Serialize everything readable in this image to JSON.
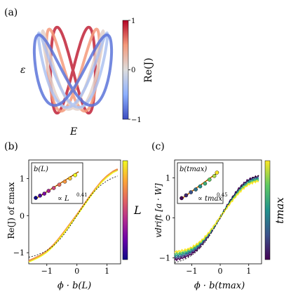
{
  "colors": {
    "coolwarm": [
      "#3b4cc0",
      "#8db0fe",
      "#dddddd",
      "#f49a7b",
      "#b40426"
    ],
    "plasma": [
      "#0d0887",
      "#6a00a8",
      "#b12a90",
      "#e16462",
      "#fca636",
      "#f0f921"
    ],
    "viridis": [
      "#440154",
      "#3b528b",
      "#21918c",
      "#5ec962",
      "#fde725"
    ],
    "fit_line": "#ff8c00"
  },
  "panels": {
    "a": {
      "label": "(a)",
      "xlabel": "E",
      "ylabel": "ε",
      "colorbar": {
        "label": "Re(J)",
        "ticks": [
          "1",
          "0",
          "−1"
        ]
      }
    },
    "b": {
      "label": "(b)",
      "xlabel": "ϕ · b(L)",
      "ylabel": "Re(J) of εmax",
      "colorbar_label": "L",
      "inset": {
        "title": "b(L)",
        "fit_text": "∝ L",
        "fit_exp": "0.41"
      }
    },
    "c": {
      "label": "(c)",
      "xlabel": "ϕ · b(tmax)",
      "ylabel": "vdrift [a · W]",
      "colorbar_label": "tmax",
      "inset": {
        "title": "b(tmax)",
        "fit_text": "∝ tmax",
        "fit_exp": "0.45"
      }
    }
  },
  "chart_data": [
    {
      "type": "line",
      "panel": "a",
      "description_of_series": "closed Lissajous-like loops in the E-epsilon plane colored by Re(J)",
      "loops": [
        {
          "name": "loop-1",
          "color_value": 0.9
        },
        {
          "name": "loop-2",
          "color_value": 0.5
        },
        {
          "name": "loop-3",
          "color_value": 0.1
        },
        {
          "name": "loop-4",
          "color_value": -0.3
        },
        {
          "name": "loop-5",
          "color_value": -0.8
        }
      ],
      "colorbar_range": [
        -1,
        1
      ]
    },
    {
      "type": "line",
      "panel": "b",
      "xlim": [
        -1.6,
        1.45
      ],
      "ylim": [
        -1.3,
        1.5
      ],
      "xticks": [
        "−1",
        "0",
        "1"
      ],
      "yticks": [
        "−1",
        "0",
        "1"
      ],
      "x": [
        -1.6,
        -1.4,
        -1.2,
        -1.0,
        -0.8,
        -0.6,
        -0.4,
        -0.2,
        0.0,
        0.2,
        0.4,
        0.6,
        0.8,
        1.0,
        1.2,
        1.35
      ],
      "series": [
        {
          "values": [
            -1.23,
            -1.16,
            -1.08,
            -0.97,
            -0.82,
            -0.63,
            -0.42,
            -0.2,
            0.02,
            0.25,
            0.48,
            0.7,
            0.9,
            1.06,
            1.18,
            1.24
          ]
        },
        {
          "values": [
            -1.22,
            -1.15,
            -1.07,
            -0.96,
            -0.81,
            -0.62,
            -0.41,
            -0.19,
            0.03,
            0.26,
            0.49,
            0.71,
            0.91,
            1.07,
            1.19,
            1.25
          ]
        },
        {
          "values": [
            -1.24,
            -1.17,
            -1.09,
            -0.98,
            -0.83,
            -0.64,
            -0.43,
            -0.21,
            0.01,
            0.24,
            0.47,
            0.69,
            0.89,
            1.05,
            1.17,
            1.23
          ]
        },
        {
          "values": [
            -1.21,
            -1.14,
            -1.06,
            -0.95,
            -0.8,
            -0.61,
            -0.4,
            -0.18,
            0.04,
            0.27,
            0.5,
            0.72,
            0.92,
            1.08,
            1.2,
            1.26
          ]
        },
        {
          "values": [
            -1.25,
            -1.18,
            -1.1,
            -0.99,
            -0.84,
            -0.65,
            -0.44,
            -0.22,
            0.0,
            0.23,
            0.46,
            0.68,
            0.88,
            1.04,
            1.16,
            1.22
          ]
        }
      ],
      "inset": {
        "points": [
          [
            0.0,
            0.05
          ],
          [
            0.1,
            0.13
          ],
          [
            0.2,
            0.2
          ],
          [
            0.3,
            0.3
          ],
          [
            0.42,
            0.4
          ],
          [
            0.55,
            0.52
          ],
          [
            0.68,
            0.63
          ],
          [
            0.8,
            0.74
          ],
          [
            0.92,
            0.86
          ]
        ],
        "fit_exponent": 0.41
      }
    },
    {
      "type": "line",
      "panel": "c",
      "xlim": [
        -1.6,
        1.45
      ],
      "ylim": [
        -1.15,
        1.45
      ],
      "xticks": [
        "−1",
        "0",
        "1"
      ],
      "yticks": [
        "−1",
        "0",
        "1"
      ],
      "x": [
        -1.6,
        -1.4,
        -1.2,
        -1.0,
        -0.8,
        -0.6,
        -0.4,
        -0.2,
        0.0,
        0.2,
        0.4,
        0.6,
        0.8,
        1.0,
        1.2,
        1.35
      ],
      "series": [
        {
          "values": [
            -1.05,
            -1.02,
            -0.97,
            -0.9,
            -0.79,
            -0.63,
            -0.44,
            -0.22,
            0.02,
            0.26,
            0.49,
            0.69,
            0.85,
            0.96,
            1.02,
            1.04
          ]
        },
        {
          "values": [
            -1.0,
            -0.97,
            -0.92,
            -0.85,
            -0.75,
            -0.6,
            -0.42,
            -0.21,
            0.02,
            0.25,
            0.47,
            0.66,
            0.82,
            0.93,
            0.99,
            1.01
          ]
        },
        {
          "values": [
            -0.95,
            -0.92,
            -0.88,
            -0.81,
            -0.71,
            -0.57,
            -0.4,
            -0.2,
            0.02,
            0.24,
            0.45,
            0.63,
            0.79,
            0.9,
            0.96,
            0.98
          ]
        },
        {
          "values": [
            -0.9,
            -0.88,
            -0.84,
            -0.77,
            -0.68,
            -0.55,
            -0.38,
            -0.19,
            0.02,
            0.23,
            0.43,
            0.61,
            0.76,
            0.87,
            0.93,
            0.95
          ]
        },
        {
          "values": [
            -0.85,
            -0.83,
            -0.8,
            -0.74,
            -0.65,
            -0.53,
            -0.37,
            -0.18,
            0.02,
            0.22,
            0.41,
            0.58,
            0.73,
            0.84,
            0.9,
            0.92
          ]
        }
      ],
      "inset": {
        "points": [
          [
            0.0,
            0.04
          ],
          [
            0.12,
            0.14
          ],
          [
            0.25,
            0.25
          ],
          [
            0.38,
            0.35
          ],
          [
            0.5,
            0.46
          ],
          [
            0.63,
            0.56
          ],
          [
            0.75,
            0.7
          ],
          [
            0.88,
            0.83
          ],
          [
            0.95,
            0.95
          ]
        ],
        "fit_exponent": 0.45
      }
    }
  ]
}
